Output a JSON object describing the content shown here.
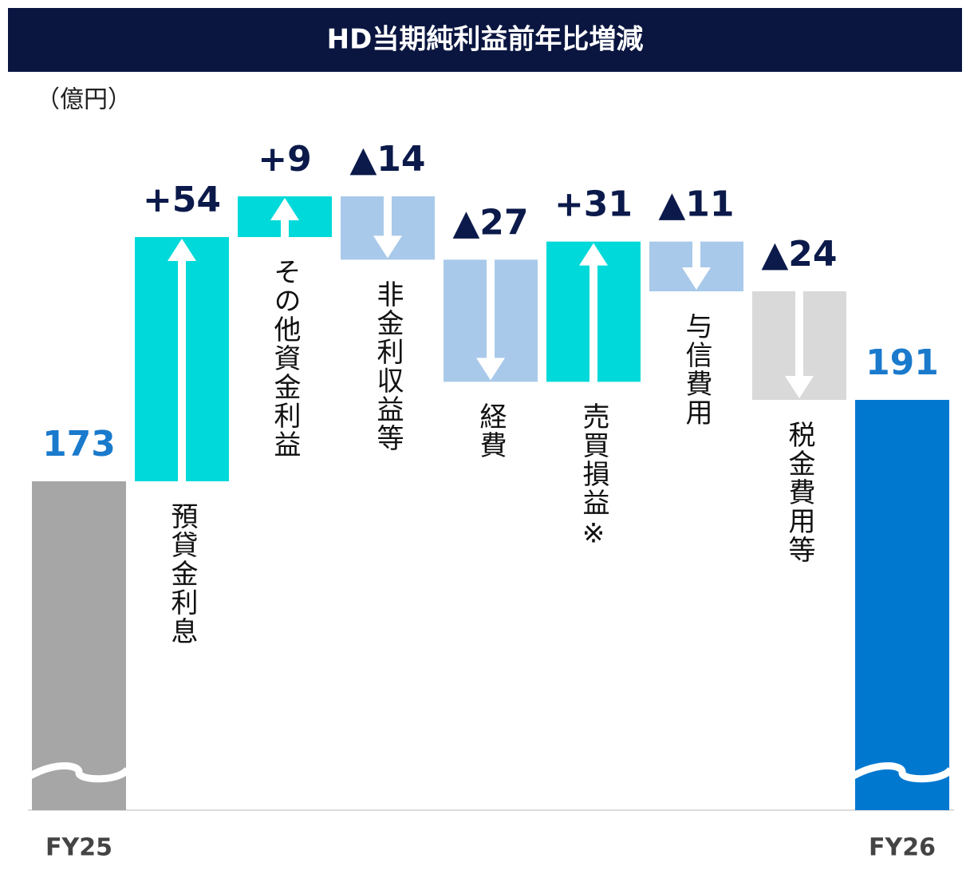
{
  "chart_data": {
    "type": "waterfall",
    "title": "HD当期純利益前年比増減",
    "unit_label": "（億円）",
    "categories": [
      "FY25",
      "預貸金利息",
      "その他資金利益",
      "非金利収益等",
      "経費",
      "売買損益※",
      "与信費用",
      "税金費用等",
      "FY26"
    ],
    "values": [
      173,
      54,
      9,
      -14,
      -27,
      31,
      -11,
      -24,
      191
    ],
    "value_labels": [
      "173",
      "+54",
      "+9",
      "▲14",
      "▲27",
      "+31",
      "▲11",
      "▲24",
      "191"
    ],
    "measures": [
      "total",
      "relative",
      "relative",
      "relative",
      "relative",
      "relative",
      "relative",
      "relative",
      "total"
    ],
    "colors": [
      "#a6a6a6",
      "#00d9d9",
      "#00d9d9",
      "#a9c9ea",
      "#a9c9ea",
      "#00d9d9",
      "#a9c9ea",
      "#d9d9d9",
      "#0078d0"
    ]
  }
}
